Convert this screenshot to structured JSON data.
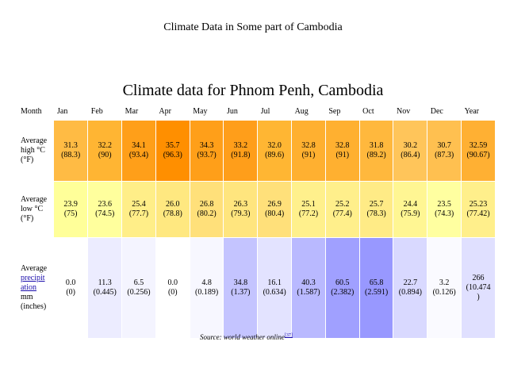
{
  "slide_title": "Climate Data in Some part of Cambodia",
  "table_title": "Climate data for Phnom Penh, Cambodia",
  "header": [
    "Month",
    "Jan",
    "Feb",
    "Mar",
    "Apr",
    "May",
    "Jun",
    "Jul",
    "Aug",
    "Sep",
    "Oct",
    "Nov",
    "Dec",
    "Year"
  ],
  "rows": {
    "high": {
      "label_lines": [
        "Average",
        "high °C",
        "(°F)"
      ],
      "cells": [
        {
          "c": "31.3",
          "f": "(88.3)",
          "color": "#ffbb44"
        },
        {
          "c": "32.2",
          "f": "(90)",
          "color": "#ffb533"
        },
        {
          "c": "34.1",
          "f": "(93.4)",
          "color": "#ff9f19"
        },
        {
          "c": "35.7",
          "f": "(96.3)",
          "color": "#ff8f00"
        },
        {
          "c": "34.3",
          "f": "(93.7)",
          "color": "#ff9f19"
        },
        {
          "c": "33.2",
          "f": "(91.8)",
          "color": "#ff9e1a"
        },
        {
          "c": "32.0",
          "f": "(89.6)",
          "color": "#ffb633"
        },
        {
          "c": "32.8",
          "f": "(91)",
          "color": "#ffb030"
        },
        {
          "c": "32.8",
          "f": "(91)",
          "color": "#ffb030"
        },
        {
          "c": "31.8",
          "f": "(89.2)",
          "color": "#ffb83d"
        },
        {
          "c": "30.2",
          "f": "(86.4)",
          "color": "#ffc55a"
        },
        {
          "c": "30.7",
          "f": "(87.3)",
          "color": "#ffc050"
        },
        {
          "c": "32.59",
          "f": "(90.67)",
          "color": "#ffb033"
        }
      ]
    },
    "low": {
      "label_lines": [
        "Average",
        "low °C",
        "(°F)"
      ],
      "cells": [
        {
          "c": "23.9",
          "f": "(75)",
          "color": "#ffff99"
        },
        {
          "c": "23.6",
          "f": "(74.5)",
          "color": "#ffff9d"
        },
        {
          "c": "25.4",
          "f": "(77.7)",
          "color": "#ffee88"
        },
        {
          "c": "26.0",
          "f": "(78.8)",
          "color": "#ffe880"
        },
        {
          "c": "26.8",
          "f": "(80.2)",
          "color": "#ffe07a"
        },
        {
          "c": "26.3",
          "f": "(79.3)",
          "color": "#ffe57e"
        },
        {
          "c": "26.9",
          "f": "(80.4)",
          "color": "#ffe07a"
        },
        {
          "c": "25.1",
          "f": "(77.2)",
          "color": "#fff08c"
        },
        {
          "c": "25.2",
          "f": "(77.4)",
          "color": "#ffef8b"
        },
        {
          "c": "25.7",
          "f": "(78.3)",
          "color": "#ffeb86"
        },
        {
          "c": "24.4",
          "f": "(75.9)",
          "color": "#fff693"
        },
        {
          "c": "23.5",
          "f": "(74.3)",
          "color": "#ffffa0"
        },
        {
          "c": "25.23",
          "f": "(77.42)",
          "color": "#ffef8b"
        }
      ]
    },
    "rain": {
      "label_pre": [
        "Average"
      ],
      "label_link": [
        "precipit",
        "ation"
      ],
      "label_post": [
        "mm",
        "(inches)"
      ],
      "cells": [
        {
          "c": "0.0",
          "f": "(0)",
          "color": "#ffffff"
        },
        {
          "c": "11.3",
          "f": "(0.445)",
          "color": "#ececff"
        },
        {
          "c": "6.5",
          "f": "(0.256)",
          "color": "#f4f4ff"
        },
        {
          "c": "0.0",
          "f": "(0)",
          "color": "#ffffff"
        },
        {
          "c": "4.8",
          "f": "(0.189)",
          "color": "#f7f7ff"
        },
        {
          "c": "34.8",
          "f": "(1.37)",
          "color": "#c4c4ff"
        },
        {
          "c": "16.1",
          "f": "(0.634)",
          "color": "#e3e3ff"
        },
        {
          "c": "40.3",
          "f": "(1.587)",
          "color": "#b9b9ff"
        },
        {
          "c": "60.5",
          "f": "(2.382)",
          "color": "#a0a0ff"
        },
        {
          "c": "65.8",
          "f": "(2.591)",
          "color": "#9898ff"
        },
        {
          "c": "22.7",
          "f": "(0.894)",
          "color": "#d9d9ff"
        },
        {
          "c": "3.2",
          "f": "(0.126)",
          "color": "#fafaff"
        },
        {
          "c": "266",
          "f": "(10.474",
          "f2": ")",
          "color": "#e0e0ff"
        }
      ]
    }
  },
  "source": {
    "text": "Source: world weather online",
    "ref": "[37]"
  }
}
